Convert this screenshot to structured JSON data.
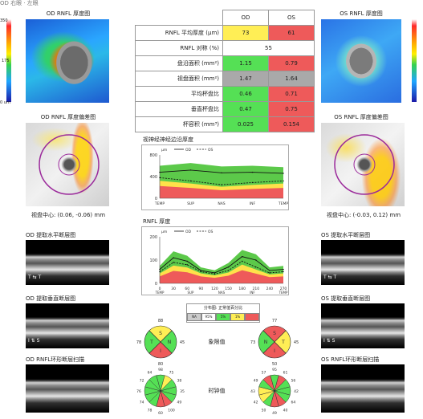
{
  "left": {
    "thickness_title": "OD RNFL 厚度图",
    "colorbar_ticks": [
      "350",
      "175",
      "0 um"
    ],
    "deviation_title": "OD RNFL 厚度偏差图",
    "center_label": "视盘中心: (0.06, -0.06) mm",
    "horiz_title": "OD 提取水平断层图",
    "vert_title": "OD 提取垂直断层图",
    "circle_title": "OD RNFL环形断层扫描"
  },
  "right": {
    "thickness_title": "OS RNFL 厚度图",
    "deviation_title": "OS RNFL 厚度偏差图",
    "center_label": "视盘中心: (-0.03, 0.12) mm",
    "horiz_title": "OS 提取水平断层图",
    "vert_title": "OS 提取垂直断层图",
    "circle_title": "OS RNFL环形断层扫描"
  },
  "table": {
    "headers": [
      "OD",
      "OS"
    ],
    "rows": [
      {
        "label": "RNFL 平均厚度 (µm)",
        "od": "73",
        "os": "61",
        "od_color": "#ffee55",
        "os_color": "#ee5a5a"
      },
      {
        "label": "RNFL 对称 (%)",
        "merged": "55"
      },
      {
        "label": "盘沿面积 (mm²)",
        "od": "1.15",
        "os": "0.79",
        "od_color": "#55e055",
        "os_color": "#ee5a5a"
      },
      {
        "label": "视盘面积 (mm²)",
        "od": "1.47",
        "os": "1.64",
        "od_color": "#a9a9a9",
        "os_color": "#a9a9a9"
      },
      {
        "label": "平均杯盘比",
        "od": "0.46",
        "os": "0.71",
        "od_color": "#55e055",
        "os_color": "#ee5a5a"
      },
      {
        "label": "垂直杯盘比",
        "od": "0.47",
        "os": "0.75",
        "od_color": "#55e055",
        "os_color": "#ee5a5a"
      },
      {
        "label": "杯容积 (mm³)",
        "od": "0.025",
        "os": "0.154",
        "od_color": "#55e055",
        "os_color": "#ee5a5a"
      }
    ]
  },
  "neural_chart": {
    "title": "视神经神经边沿厚度",
    "legend": [
      "µm",
      "OD",
      "OS"
    ],
    "y_ticks": [
      "800",
      "400",
      "0"
    ],
    "x_ticks": [
      "TEMP",
      "SUP",
      "NAS",
      "INF",
      "TEMP"
    ]
  },
  "rnfl_chart": {
    "title": "RNFL 厚度",
    "legend": [
      "µm",
      "OD",
      "OS"
    ],
    "y_ticks": [
      "200",
      "100",
      "0"
    ],
    "x_ticks": [
      "0",
      "30",
      "60",
      "90",
      "120",
      "150",
      "180",
      "210",
      "240",
      "270"
    ],
    "x_names": [
      "TEMP",
      "SUP",
      "NAS",
      "INF",
      "TEMP"
    ]
  },
  "legend_box": {
    "title": "分布图: 正常值百分比",
    "items": [
      {
        "label": "NA",
        "color": "#cccccc"
      },
      {
        "label": "95%",
        "color": "#ffffff"
      },
      {
        "label": "5%",
        "color": "#55e055"
      },
      {
        "label": "1%",
        "color": "#ffee55"
      },
      {
        "label": "",
        "color": "#ee5a5a"
      }
    ]
  },
  "quadrant_label": "象限值",
  "clock_label": "时钟值",
  "od_quadrants": {
    "S": "88",
    "N": "45",
    "I": "80",
    "T": "78",
    "S_color": "#ffee55",
    "N_color": "#55e055",
    "I_color": "#ee5a5a",
    "T_color": "#55e055"
  },
  "os_quadrants": {
    "S": "77",
    "N": "73",
    "I": "50",
    "T": "45",
    "S_color": "#ee5a5a",
    "N_color": "#55e055",
    "I_color": "#ee5a5a",
    "T_color": "#ffee55"
  },
  "od_clock": {
    "values": [
      "98",
      "75",
      "38",
      "35",
      "49",
      "100",
      "60",
      "78",
      "74",
      "76",
      "72",
      "64"
    ],
    "colors": [
      "#55e055",
      "#ffee55",
      "#55e055",
      "#55e055",
      "#55e055",
      "#ee5a5a",
      "#ee5a5a",
      "#55e055",
      "#55e055",
      "#55e055",
      "#55e055",
      "#55e055"
    ]
  },
  "os_clock": {
    "values": [
      "95",
      "61",
      "56",
      "42",
      "64",
      "40",
      "49",
      "50",
      "42",
      "43",
      "49",
      "57"
    ],
    "colors": [
      "#55e055",
      "#ee5a5a",
      "#55e055",
      "#55e055",
      "#55e055",
      "#ee5a5a",
      "#ee5a5a",
      "#55e055",
      "#ffee55",
      "#ffee55",
      "#55e055",
      "#ee5a5a"
    ]
  },
  "chart_data": [
    {
      "type": "line",
      "title": "视神经神经边沿厚度",
      "x": [
        "TEMP",
        "SUP",
        "NAS",
        "INF",
        "TEMP"
      ],
      "ylim": [
        0,
        800
      ],
      "series": [
        {
          "name": "OD",
          "values": [
            480,
            520,
            470,
            480,
            460
          ]
        },
        {
          "name": "OS",
          "values": [
            380,
            320,
            250,
            290,
            320
          ]
        }
      ]
    },
    {
      "type": "line",
      "title": "RNFL 厚度",
      "x": [
        0,
        30,
        60,
        90,
        120,
        150,
        180,
        210,
        240,
        270
      ],
      "ylim": [
        0,
        200
      ],
      "series": [
        {
          "name": "OD",
          "values": [
            60,
            110,
            95,
            55,
            45,
            70,
            115,
            100,
            55,
            60
          ]
        },
        {
          "name": "OS",
          "values": [
            50,
            90,
            80,
            50,
            40,
            55,
            95,
            70,
            45,
            50
          ]
        }
      ]
    }
  ]
}
